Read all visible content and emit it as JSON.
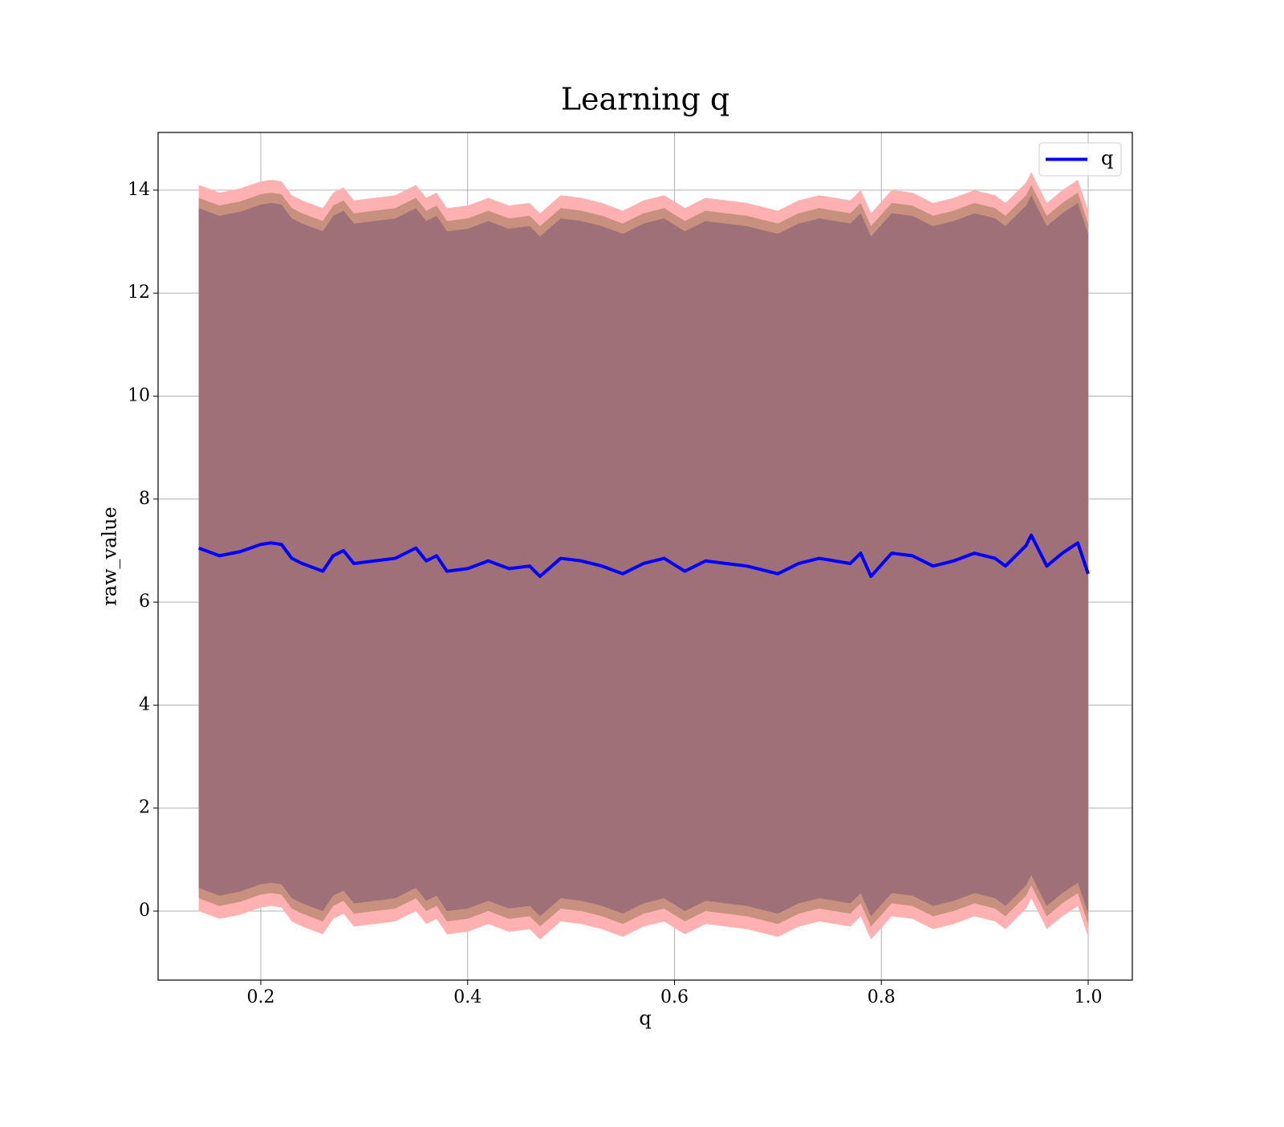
{
  "chart_data": {
    "type": "line",
    "title": "Learning q",
    "xlabel": "q",
    "ylabel": "raw_value",
    "x": [
      0.14,
      0.16,
      0.18,
      0.2,
      0.21,
      0.22,
      0.23,
      0.24,
      0.26,
      0.27,
      0.28,
      0.29,
      0.31,
      0.33,
      0.35,
      0.36,
      0.37,
      0.38,
      0.4,
      0.42,
      0.44,
      0.46,
      0.47,
      0.49,
      0.51,
      0.53,
      0.55,
      0.57,
      0.59,
      0.61,
      0.63,
      0.65,
      0.67,
      0.7,
      0.72,
      0.74,
      0.77,
      0.78,
      0.79,
      0.81,
      0.83,
      0.85,
      0.87,
      0.89,
      0.91,
      0.92,
      0.94,
      0.945,
      0.96,
      0.975,
      0.99,
      1.0
    ],
    "series": [
      {
        "name": "q",
        "color": "#0000ff",
        "values": [
          7.05,
          6.9,
          6.98,
          7.12,
          7.15,
          7.12,
          6.85,
          6.75,
          6.6,
          6.9,
          7.0,
          6.75,
          6.8,
          6.85,
          7.05,
          6.8,
          6.9,
          6.6,
          6.65,
          6.8,
          6.65,
          6.7,
          6.5,
          6.85,
          6.8,
          6.7,
          6.55,
          6.75,
          6.85,
          6.6,
          6.8,
          6.75,
          6.7,
          6.55,
          6.75,
          6.85,
          6.75,
          6.95,
          6.5,
          6.95,
          6.9,
          6.7,
          6.8,
          6.95,
          6.85,
          6.7,
          7.1,
          7.3,
          6.7,
          6.95,
          7.15,
          6.55
        ]
      }
    ],
    "bands": [
      {
        "color": "#ffb0b0",
        "upper": [
          14.1,
          13.95,
          14.03,
          14.17,
          14.2,
          14.17,
          13.9,
          13.8,
          13.65,
          13.95,
          14.05,
          13.8,
          13.85,
          13.9,
          14.1,
          13.85,
          13.95,
          13.65,
          13.7,
          13.85,
          13.7,
          13.75,
          13.55,
          13.9,
          13.85,
          13.75,
          13.6,
          13.8,
          13.9,
          13.65,
          13.85,
          13.8,
          13.75,
          13.6,
          13.8,
          13.9,
          13.8,
          14.0,
          13.55,
          14.0,
          13.95,
          13.75,
          13.85,
          14.0,
          13.9,
          13.75,
          14.15,
          14.35,
          13.75,
          14.0,
          14.2,
          13.6
        ],
        "lower": [
          0.0,
          -0.15,
          -0.07,
          0.07,
          0.1,
          0.07,
          -0.2,
          -0.3,
          -0.45,
          -0.15,
          -0.05,
          -0.3,
          -0.25,
          -0.2,
          0.0,
          -0.25,
          -0.15,
          -0.45,
          -0.4,
          -0.25,
          -0.4,
          -0.35,
          -0.55,
          -0.2,
          -0.25,
          -0.35,
          -0.5,
          -0.3,
          -0.2,
          -0.45,
          -0.25,
          -0.3,
          -0.35,
          -0.5,
          -0.3,
          -0.2,
          -0.3,
          -0.1,
          -0.55,
          -0.1,
          -0.15,
          -0.35,
          -0.25,
          -0.1,
          -0.2,
          -0.35,
          0.05,
          0.25,
          -0.35,
          -0.1,
          0.1,
          -0.5
        ]
      },
      {
        "color": "#c8907e",
        "upper": [
          13.85,
          13.7,
          13.78,
          13.92,
          13.95,
          13.92,
          13.65,
          13.55,
          13.4,
          13.7,
          13.8,
          13.55,
          13.6,
          13.65,
          13.85,
          13.6,
          13.7,
          13.4,
          13.45,
          13.6,
          13.45,
          13.5,
          13.3,
          13.65,
          13.6,
          13.5,
          13.35,
          13.55,
          13.65,
          13.4,
          13.6,
          13.55,
          13.5,
          13.35,
          13.55,
          13.65,
          13.55,
          13.75,
          13.3,
          13.75,
          13.7,
          13.5,
          13.6,
          13.75,
          13.65,
          13.5,
          13.9,
          14.1,
          13.5,
          13.75,
          13.95,
          13.35
        ],
        "lower": [
          0.25,
          0.1,
          0.18,
          0.32,
          0.35,
          0.32,
          0.05,
          -0.05,
          -0.2,
          0.1,
          0.2,
          -0.05,
          0.0,
          0.05,
          0.25,
          0.0,
          0.1,
          -0.2,
          -0.15,
          0.0,
          -0.15,
          -0.1,
          -0.3,
          0.05,
          0.0,
          -0.1,
          -0.25,
          -0.05,
          0.05,
          -0.2,
          0.0,
          -0.05,
          -0.1,
          -0.25,
          -0.05,
          0.05,
          -0.05,
          0.15,
          -0.3,
          0.15,
          0.1,
          -0.1,
          0.0,
          0.15,
          0.05,
          -0.1,
          0.3,
          0.5,
          -0.1,
          0.15,
          0.35,
          -0.25
        ]
      },
      {
        "color": "#a07078",
        "upper": [
          13.65,
          13.5,
          13.58,
          13.72,
          13.75,
          13.72,
          13.45,
          13.35,
          13.2,
          13.5,
          13.6,
          13.35,
          13.4,
          13.45,
          13.65,
          13.4,
          13.5,
          13.2,
          13.25,
          13.4,
          13.25,
          13.3,
          13.1,
          13.45,
          13.4,
          13.3,
          13.15,
          13.35,
          13.45,
          13.2,
          13.4,
          13.35,
          13.3,
          13.15,
          13.35,
          13.45,
          13.35,
          13.55,
          13.1,
          13.55,
          13.5,
          13.3,
          13.4,
          13.55,
          13.45,
          13.3,
          13.7,
          13.9,
          13.3,
          13.55,
          13.75,
          13.15
        ],
        "lower": [
          0.45,
          0.3,
          0.38,
          0.52,
          0.55,
          0.52,
          0.25,
          0.15,
          0.0,
          0.3,
          0.4,
          0.15,
          0.2,
          0.25,
          0.45,
          0.2,
          0.3,
          0.0,
          0.05,
          0.2,
          0.05,
          0.1,
          -0.1,
          0.25,
          0.2,
          0.1,
          -0.05,
          0.15,
          0.25,
          0.0,
          0.2,
          0.15,
          0.1,
          -0.05,
          0.15,
          0.25,
          0.15,
          0.35,
          -0.1,
          0.35,
          0.3,
          0.1,
          0.2,
          0.35,
          0.25,
          0.1,
          0.5,
          0.7,
          0.1,
          0.35,
          0.55,
          -0.05
        ]
      }
    ],
    "xlim": [
      0.1007,
      1.0427
    ],
    "ylim": [
      -1.34,
      15.12
    ],
    "xticks": [
      0.2,
      0.4,
      0.6,
      0.8,
      {
        "value": 1,
        "label": "1.0"
      }
    ],
    "yticks": [
      0,
      2,
      4,
      6,
      8,
      10,
      12,
      14
    ],
    "grid": true,
    "legend": "upper right"
  }
}
